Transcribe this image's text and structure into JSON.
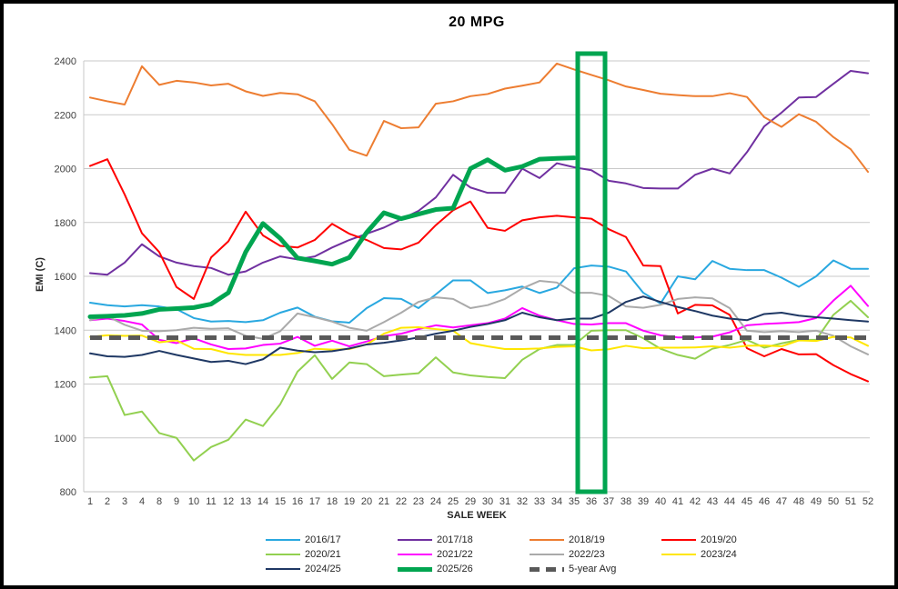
{
  "chart_data": {
    "type": "line",
    "title": "20 MPG",
    "xlabel": "SALE WEEK",
    "ylabel": "EMI (C)",
    "ylim": [
      800,
      2400
    ],
    "yticks": [
      800,
      1000,
      1200,
      1400,
      1600,
      1800,
      2000,
      2200,
      2400
    ],
    "grid": "horizontal",
    "legend_position": "bottom",
    "x": [
      1,
      2,
      3,
      4,
      8,
      9,
      10,
      11,
      12,
      13,
      14,
      15,
      16,
      17,
      18,
      19,
      20,
      21,
      22,
      23,
      24,
      25,
      29,
      30,
      31,
      32,
      33,
      34,
      35,
      36,
      37,
      38,
      39,
      40,
      41,
      42,
      43,
      44,
      45,
      46,
      47,
      48,
      49,
      50,
      51,
      52
    ],
    "highlight": {
      "week": 36,
      "color": "#00A550"
    },
    "series": [
      {
        "name": "2016/17",
        "color": "#29A8E0",
        "width": 2,
        "values": [
          1502,
          1493,
          1488,
          1493,
          1488,
          1478,
          1445,
          1432,
          1434,
          1430,
          1437,
          1465,
          1484,
          1450,
          1433,
          1428,
          1482,
          1519,
          1516,
          1482,
          1533,
          1585,
          1585,
          1538,
          1548,
          1562,
          1538,
          1558,
          1630,
          1640,
          1636,
          1618,
          1539,
          1499,
          1600,
          1589,
          1657,
          1628,
          1623,
          1623,
          1595,
          1561,
          1600,
          1659,
          1628,
          1628
        ]
      },
      {
        "name": "2017/18",
        "color": "#7030A0",
        "width": 2,
        "values": [
          1612,
          1606,
          1651,
          1719,
          1674,
          1651,
          1638,
          1631,
          1606,
          1618,
          1651,
          1674,
          1663,
          1674,
          1707,
          1735,
          1758,
          1781,
          1812,
          1843,
          1893,
          1977,
          1930,
          1910,
          1910,
          2000,
          1965,
          2020,
          2005,
          1994,
          1955,
          1945,
          1928,
          1926,
          1926,
          1977,
          2000,
          1982,
          2061,
          2157,
          2208,
          2264,
          2266,
          2315,
          2363,
          2354
        ]
      },
      {
        "name": "2018/19",
        "color": "#ED7D31",
        "width": 2,
        "values": [
          2264,
          2250,
          2238,
          2380,
          2311,
          2326,
          2320,
          2309,
          2315,
          2287,
          2270,
          2281,
          2276,
          2250,
          2165,
          2070,
          2048,
          2177,
          2150,
          2153,
          2241,
          2250,
          2269,
          2277,
          2297,
          2308,
          2320,
          2390,
          2368,
          2348,
          2328,
          2305,
          2292,
          2278,
          2273,
          2269,
          2269,
          2280,
          2266,
          2191,
          2155,
          2202,
          2174,
          2117,
          2072,
          1988
        ]
      },
      {
        "name": "2019/20",
        "color": "#FF0000",
        "width": 2,
        "values": [
          2010,
          2035,
          1904,
          1760,
          1690,
          1560,
          1516,
          1670,
          1730,
          1840,
          1752,
          1713,
          1707,
          1735,
          1795,
          1758,
          1735,
          1705,
          1700,
          1725,
          1790,
          1845,
          1878,
          1780,
          1769,
          1808,
          1819,
          1825,
          1819,
          1814,
          1775,
          1746,
          1640,
          1638,
          1462,
          1494,
          1492,
          1457,
          1333,
          1303,
          1330,
          1310,
          1311,
          1270,
          1237,
          1210
        ]
      },
      {
        "name": "2020/21",
        "color": "#92D050",
        "width": 2,
        "values": [
          1224,
          1229,
          1085,
          1098,
          1018,
          1000,
          916,
          966,
          993,
          1068,
          1044,
          1125,
          1246,
          1307,
          1219,
          1280,
          1274,
          1229,
          1235,
          1240,
          1299,
          1243,
          1232,
          1226,
          1222,
          1290,
          1330,
          1345,
          1345,
          1398,
          1400,
          1400,
          1370,
          1331,
          1308,
          1294,
          1331,
          1345,
          1364,
          1335,
          1351,
          1364,
          1364,
          1457,
          1509,
          1448
        ]
      },
      {
        "name": "2021/22",
        "color": "#FF00FF",
        "width": 2,
        "values": [
          1437,
          1443,
          1434,
          1421,
          1364,
          1352,
          1370,
          1347,
          1330,
          1332,
          1345,
          1350,
          1375,
          1342,
          1361,
          1340,
          1358,
          1378,
          1387,
          1404,
          1418,
          1410,
          1418,
          1426,
          1443,
          1482,
          1454,
          1437,
          1423,
          1421,
          1426,
          1426,
          1398,
          1381,
          1373,
          1373,
          1376,
          1392,
          1418,
          1423,
          1426,
          1430,
          1445,
          1510,
          1565,
          1490
        ]
      },
      {
        "name": "2022/23",
        "color": "#AAAAAA",
        "width": 2,
        "values": [
          1437,
          1452,
          1420,
          1398,
          1396,
          1400,
          1409,
          1405,
          1407,
          1379,
          1368,
          1396,
          1462,
          1448,
          1432,
          1409,
          1398,
          1430,
          1465,
          1505,
          1522,
          1516,
          1482,
          1493,
          1516,
          1555,
          1583,
          1577,
          1539,
          1539,
          1527,
          1488,
          1483,
          1494,
          1516,
          1522,
          1518,
          1482,
          1398,
          1393,
          1396,
          1393,
          1398,
          1379,
          1340,
          1310
        ]
      },
      {
        "name": "2023/24",
        "color": "#FFE600",
        "width": 2,
        "values": [
          1375,
          1381,
          1379,
          1380,
          1355,
          1362,
          1331,
          1330,
          1314,
          1308,
          1308,
          1308,
          1315,
          1331,
          1328,
          1330,
          1347,
          1387,
          1409,
          1411,
          1404,
          1398,
          1352,
          1340,
          1330,
          1330,
          1332,
          1338,
          1340,
          1325,
          1329,
          1342,
          1333,
          1335,
          1335,
          1336,
          1340,
          1335,
          1342,
          1343,
          1340,
          1362,
          1360,
          1375,
          1373,
          1342
        ]
      },
      {
        "name": "2024/25",
        "color": "#1F3864",
        "width": 2,
        "values": [
          1314,
          1303,
          1301,
          1308,
          1323,
          1308,
          1295,
          1282,
          1286,
          1274,
          1292,
          1335,
          1324,
          1318,
          1322,
          1332,
          1347,
          1353,
          1362,
          1373,
          1387,
          1398,
          1412,
          1423,
          1437,
          1465,
          1448,
          1437,
          1443,
          1443,
          1465,
          1505,
          1525,
          1505,
          1486,
          1471,
          1454,
          1443,
          1437,
          1460,
          1465,
          1454,
          1448,
          1443,
          1437,
          1432
        ]
      },
      {
        "name": "2025/26",
        "color": "#00A550",
        "width": 5,
        "values": [
          1450,
          1452,
          1455,
          1462,
          1477,
          1480,
          1484,
          1497,
          1539,
          1690,
          1796,
          1741,
          1668,
          1657,
          1645,
          1670,
          1763,
          1836,
          1814,
          1831,
          1848,
          1853,
          2000,
          2033,
          1994,
          2008,
          2035,
          2038,
          2040
        ]
      },
      {
        "name": "5-year Avg",
        "color": "#595959",
        "width": 5,
        "dash": [
          13,
          8
        ],
        "constant": 1372
      }
    ]
  }
}
